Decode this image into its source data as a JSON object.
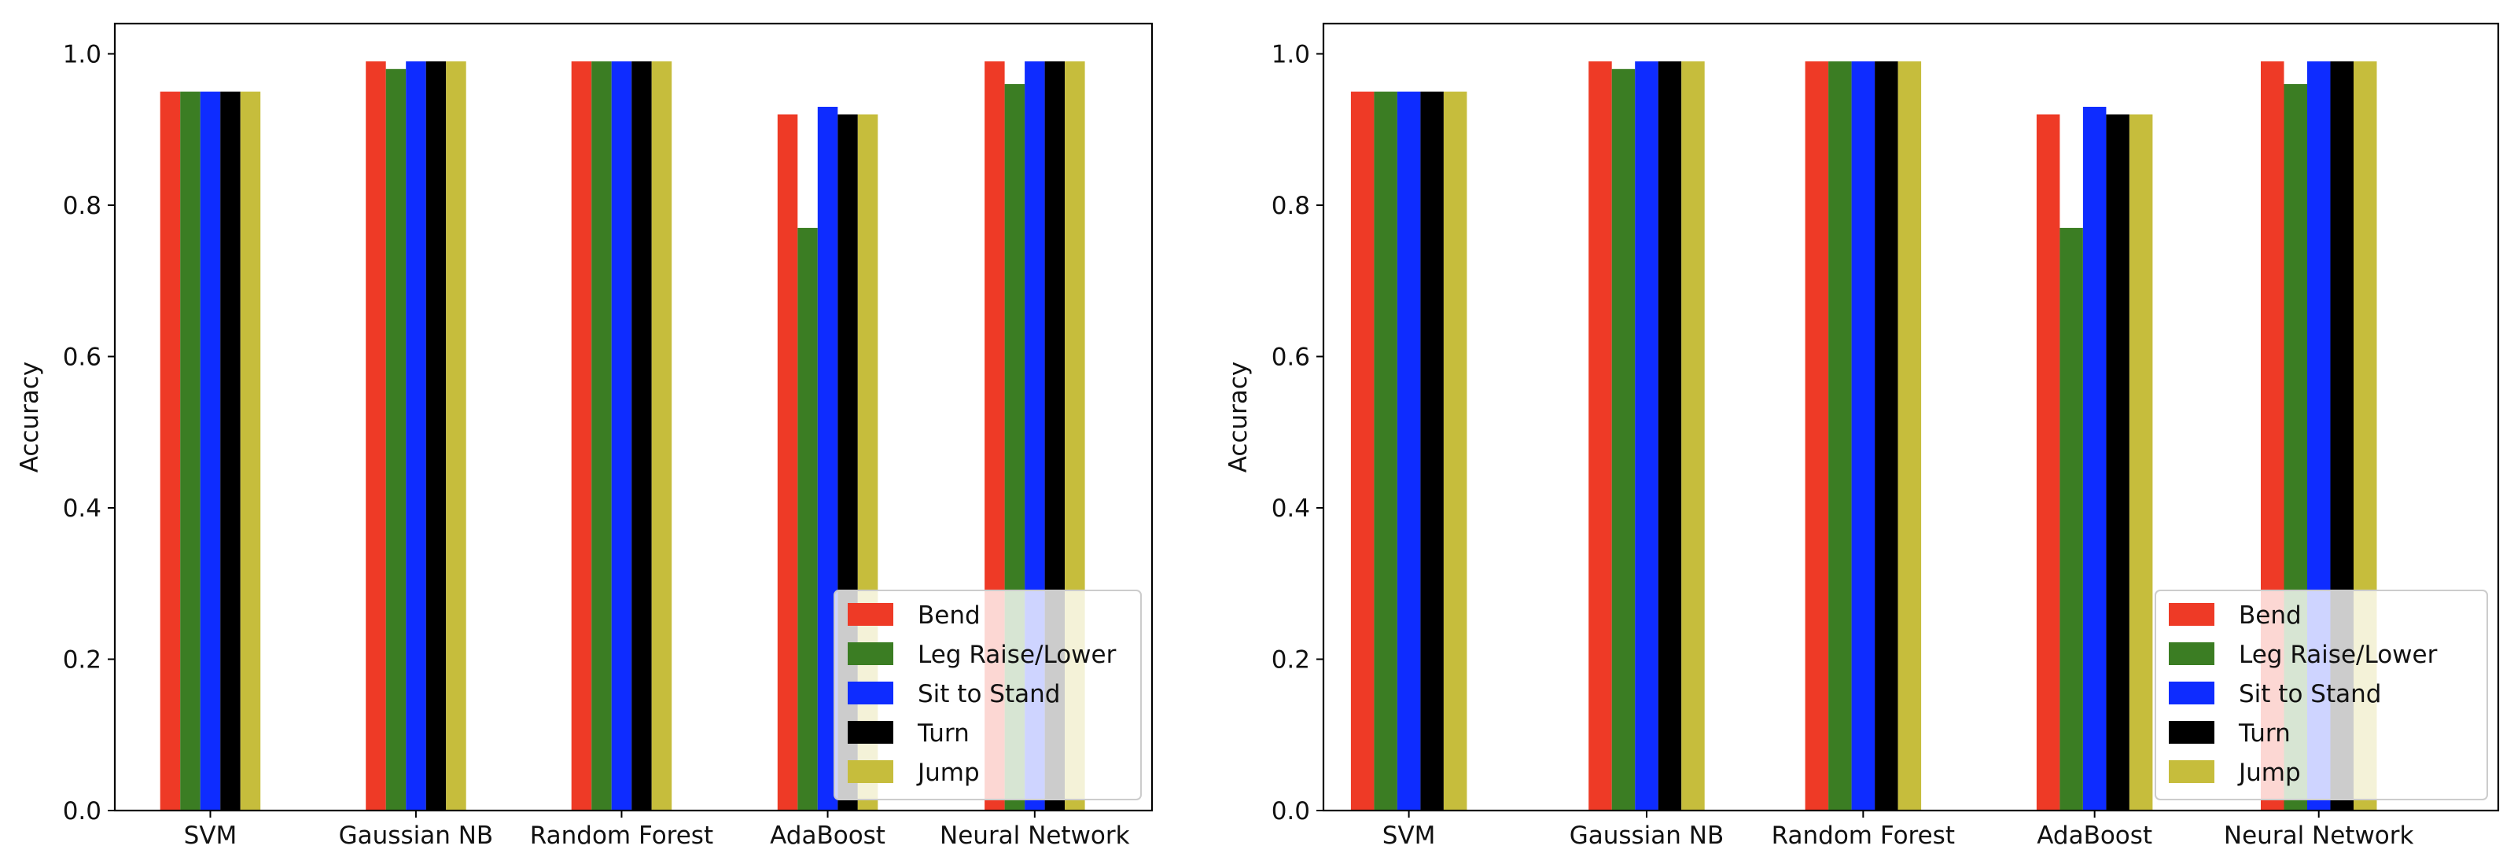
{
  "chart_data": [
    {
      "type": "bar",
      "title": "",
      "xlabel": "",
      "ylabel": "Accuracy",
      "ylim": [
        0,
        1.04
      ],
      "yticks": [
        "0.0",
        "0.2",
        "0.4",
        "0.6",
        "0.8",
        "1.0"
      ],
      "grid": false,
      "legend_position": "lower-right",
      "categories": [
        "SVM",
        "Gaussian NB",
        "Random Forest",
        "AdaBoost",
        "Neural Network"
      ],
      "series": [
        {
          "name": "Bend",
          "color": "#ee3a26",
          "values": [
            0.95,
            0.99,
            0.99,
            0.92,
            0.99
          ]
        },
        {
          "name": "Leg Raise/Lower",
          "color": "#3b7d23",
          "values": [
            0.95,
            0.98,
            0.99,
            0.77,
            0.96
          ]
        },
        {
          "name": "Sit to Stand",
          "color": "#0e2cff",
          "values": [
            0.95,
            0.99,
            0.99,
            0.93,
            0.99
          ]
        },
        {
          "name": "Turn",
          "color": "#000000",
          "values": [
            0.95,
            0.99,
            0.99,
            0.92,
            0.99
          ]
        },
        {
          "name": "Jump",
          "color": "#c6bd3c",
          "values": [
            0.95,
            0.99,
            0.99,
            0.92,
            0.99
          ]
        }
      ]
    },
    {
      "type": "bar",
      "title": "",
      "xlabel": "",
      "ylabel": "Accuracy",
      "ylim": [
        0,
        1.04
      ],
      "yticks": [
        "0.0",
        "0.2",
        "0.4",
        "0.6",
        "0.8",
        "1.0"
      ],
      "grid": false,
      "legend_position": "lower-right",
      "categories": [
        "SVM",
        "Gaussian NB",
        "Random Forest",
        "AdaBoost",
        "Neural Network"
      ],
      "series": [
        {
          "name": "Bend",
          "color": "#ee3a26",
          "values": [
            0.95,
            0.99,
            0.99,
            0.92,
            0.99
          ]
        },
        {
          "name": "Leg Raise/Lower",
          "color": "#3b7d23",
          "values": [
            0.95,
            0.98,
            0.99,
            0.77,
            0.96
          ]
        },
        {
          "name": "Sit to Stand",
          "color": "#0e2cff",
          "values": [
            0.95,
            0.99,
            0.99,
            0.93,
            0.99
          ]
        },
        {
          "name": "Turn",
          "color": "#000000",
          "values": [
            0.95,
            0.99,
            0.99,
            0.92,
            0.99
          ]
        },
        {
          "name": "Jump",
          "color": "#c6bd3c",
          "values": [
            0.95,
            0.99,
            0.99,
            0.92,
            0.99
          ]
        }
      ]
    }
  ]
}
